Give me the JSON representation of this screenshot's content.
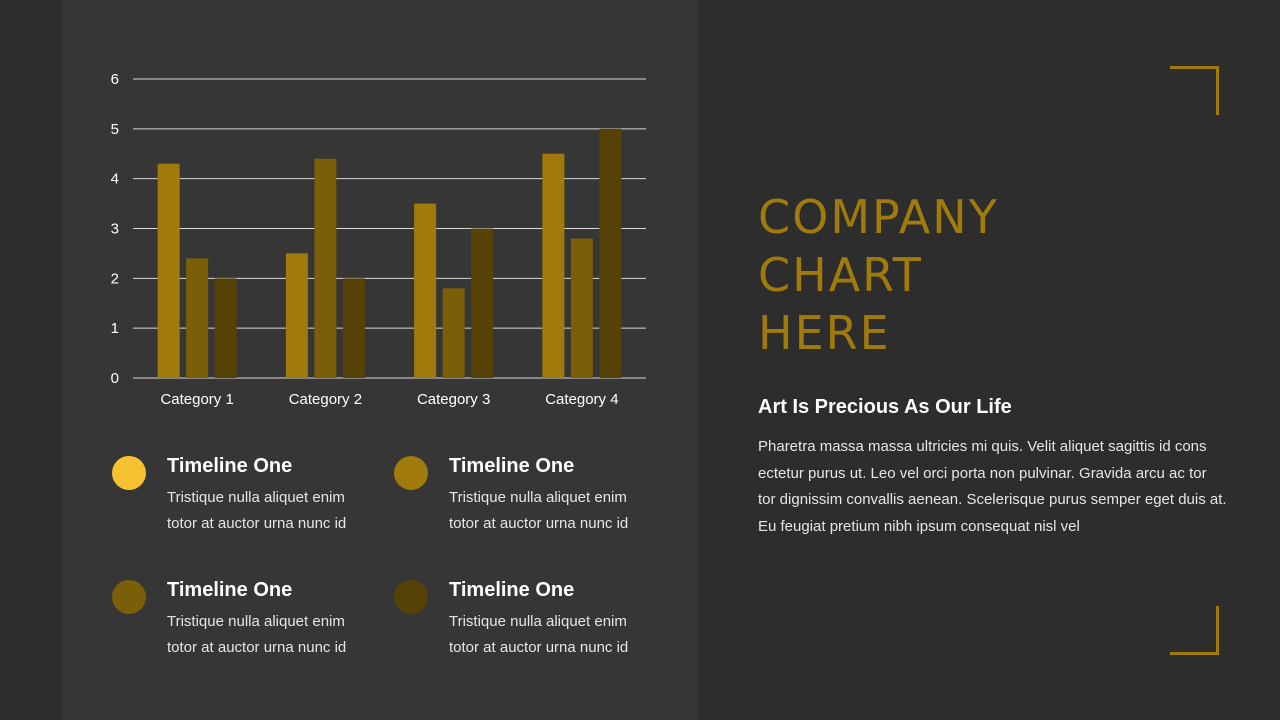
{
  "colors": {
    "background": "#2d2d2d",
    "panel": "#363636",
    "accent": "#a07b0c",
    "series1": "#a07b0c",
    "series2": "#7a5e08",
    "series3": "#574205",
    "dot_bright": "#f7c232"
  },
  "chart_data": {
    "type": "bar",
    "categories": [
      "Category 1",
      "Category 2",
      "Category 3",
      "Category 4"
    ],
    "series": [
      {
        "values": [
          4.3,
          2.5,
          3.5,
          4.5
        ]
      },
      {
        "values": [
          2.4,
          4.4,
          1.8,
          2.8
        ]
      },
      {
        "values": [
          2.0,
          2.0,
          3.0,
          5.0
        ]
      }
    ],
    "yticks": [
      "0",
      "1",
      "2",
      "3",
      "4",
      "5",
      "6"
    ],
    "ylim": [
      0,
      6
    ],
    "grid": true
  },
  "timeline": [
    {
      "title": "Timeline One",
      "text": "Tristique nulla aliquet enim totor at auctor urna nunc id",
      "dot_color": "#f7c232"
    },
    {
      "title": "Timeline One",
      "text": "Tristique nulla aliquet enim totor at auctor urna nunc id",
      "dot_color": "#a07b0c"
    },
    {
      "title": "Timeline One",
      "text": "Tristique nulla aliquet enim totor at auctor urna nunc id",
      "dot_color": "#7a5e08"
    },
    {
      "title": "Timeline One",
      "text": "Tristique nulla aliquet enim totor at auctor urna nunc id",
      "dot_color": "#574205"
    }
  ],
  "heading": {
    "line1": "COMPANY",
    "line2": "CHART",
    "line3": "HERE"
  },
  "subtitle": "Art Is Precious As Our Life",
  "body": "Pharetra massa massa ultricies mi quis. Velit aliquet sagittis id cons ectetur purus ut. Leo vel orci porta non pulvinar. Gravida arcu ac tor tor dignissim convallis aenean. Scelerisque purus semper eget duis at. Eu feugiat pretium nibh ipsum consequat nisl vel"
}
